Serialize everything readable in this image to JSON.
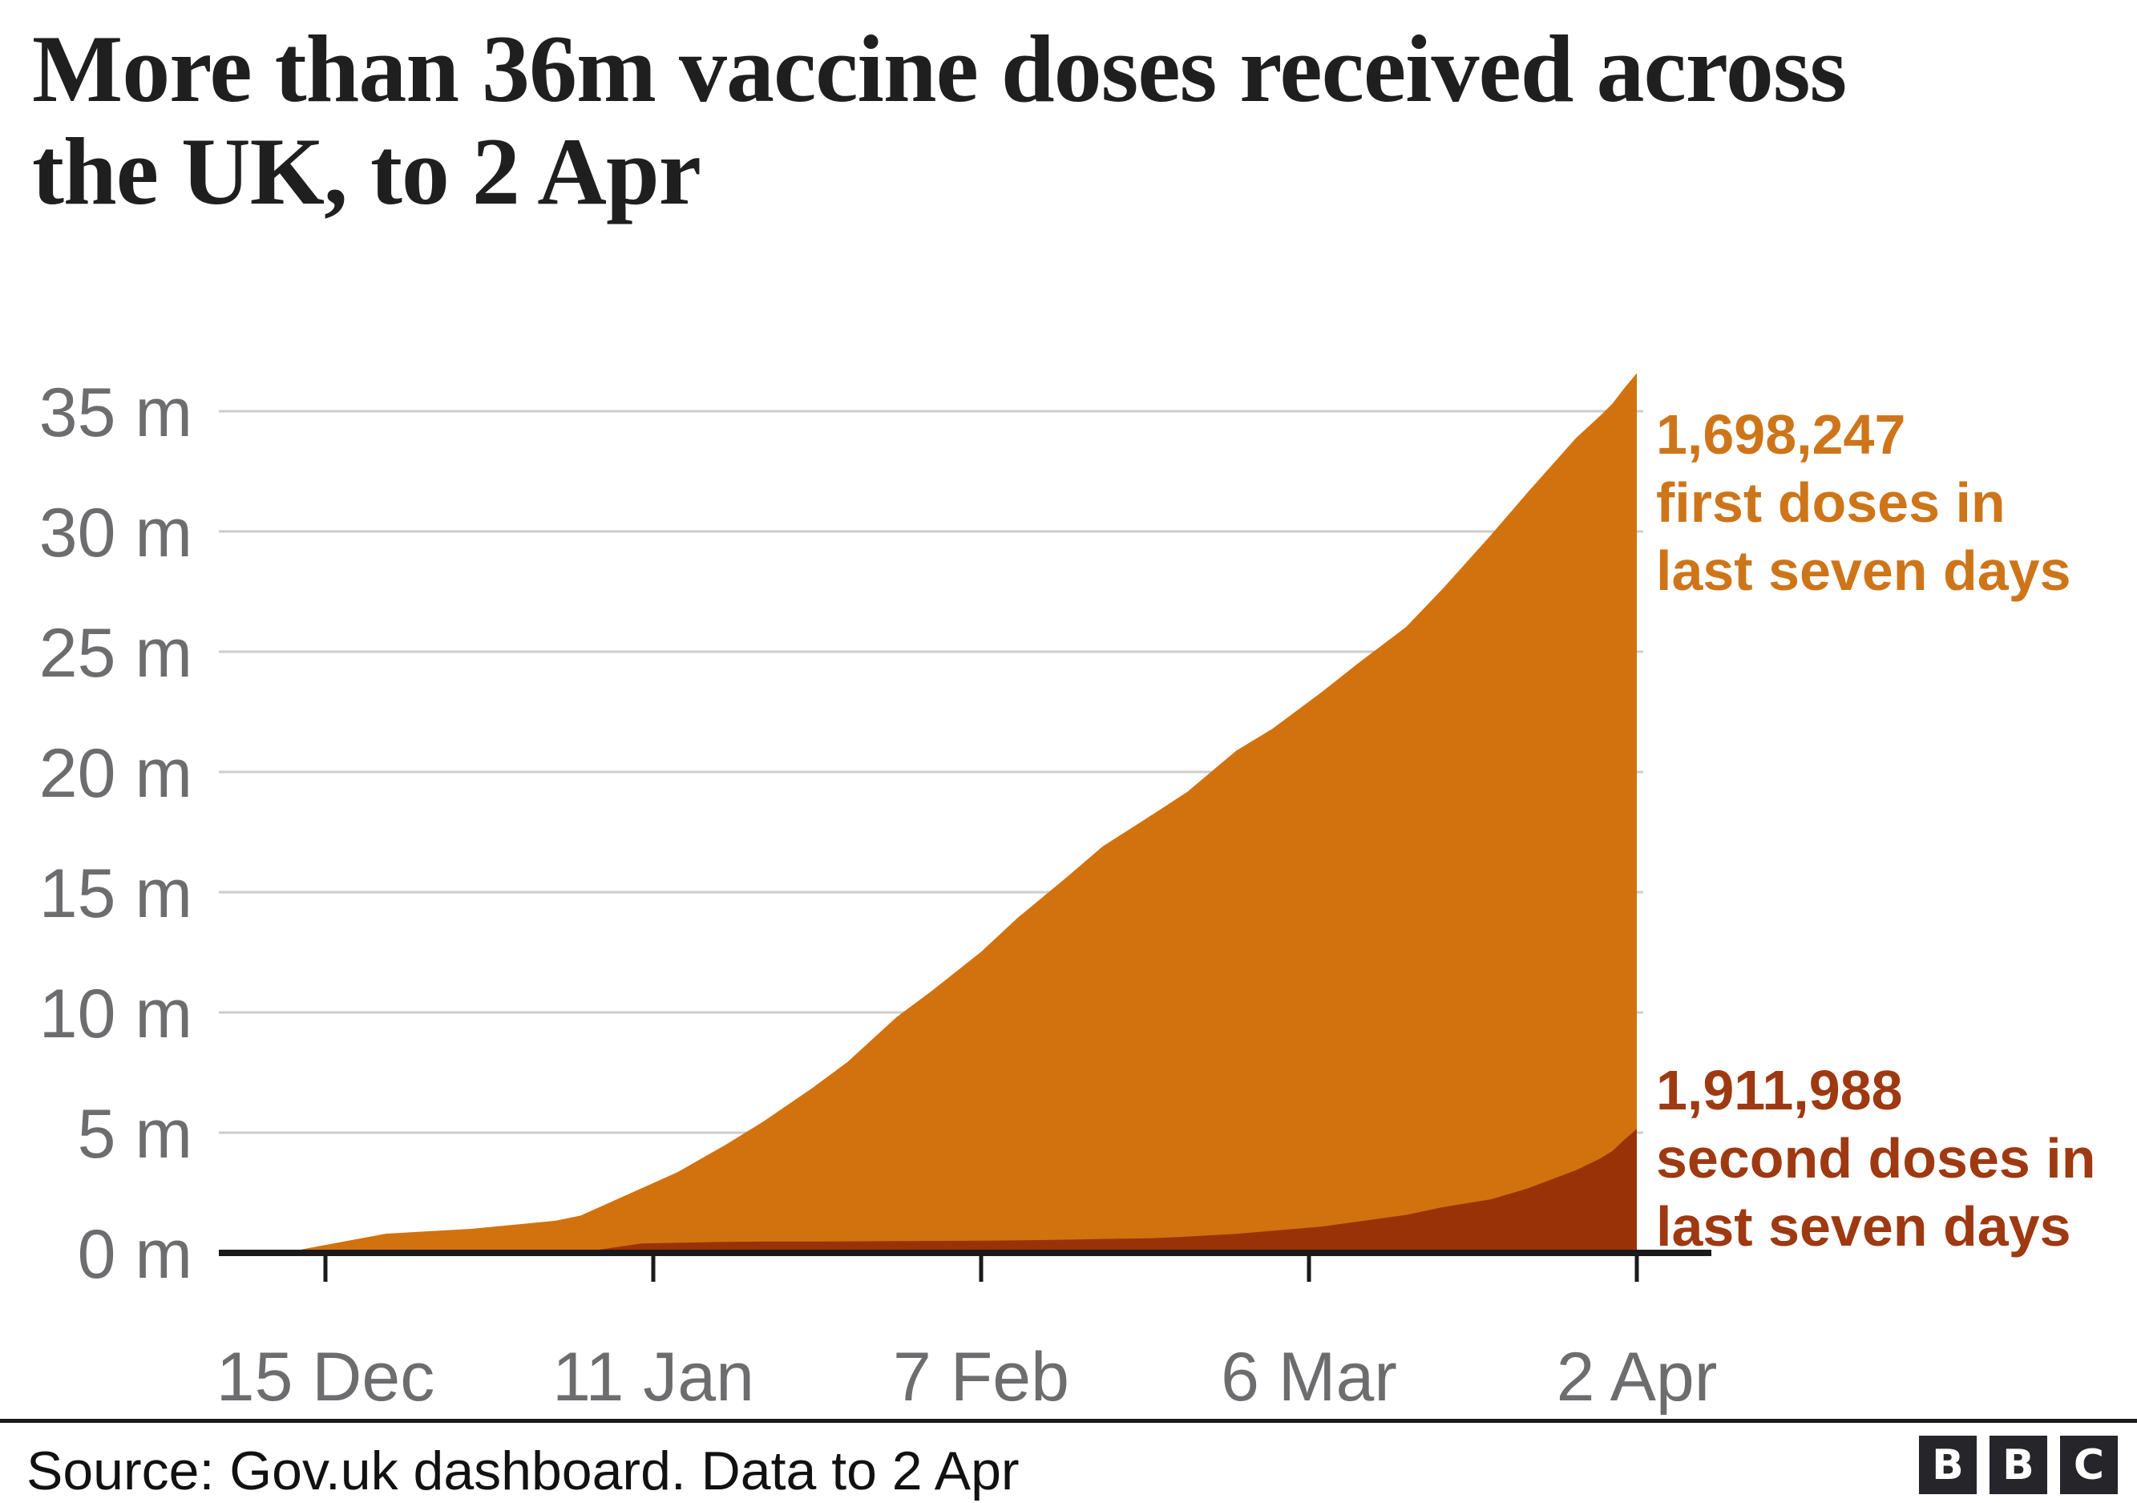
{
  "header": {
    "title_line1": "More than 36m vaccine doses received across",
    "title_line2": "the UK, to 2 Apr"
  },
  "annotations": {
    "first": {
      "lines": [
        "1,698,247",
        "first doses in",
        "last seven days"
      ],
      "color": "#CE751A"
    },
    "second": {
      "lines": [
        "1,911,988",
        "second doses in",
        "last seven days"
      ],
      "color": "#9E3911"
    }
  },
  "footer": {
    "source": "Source: Gov.uk dashboard. Data to 2 Apr",
    "logo_letters": [
      "B",
      "B",
      "C"
    ]
  },
  "chart_data": {
    "type": "area",
    "stacked": true,
    "title": "More than 36m vaccine doses received across the UK, to 2 Apr",
    "subtitle": "",
    "x_label": "",
    "y_label": "",
    "y_unit": "millions of doses",
    "y_range": [
      0,
      36.6
    ],
    "grid": "horizontal",
    "legend_position": "annotations-right",
    "colors": {
      "first_doses_area": "#D1720E",
      "second_doses_area": "#993307",
      "gridline": "#CDCDCD",
      "axis_line": "#1a1a1a",
      "axis_label": "#6D6D70"
    },
    "series_names": [
      "second doses (bottom, dark)",
      "first doses (top, orange)"
    ],
    "note": "cumulative doses, stacked: top edge = total = first + second",
    "y_ticks": [
      {
        "v": 0,
        "label": "0 m"
      },
      {
        "v": 5,
        "label": "5 m"
      },
      {
        "v": 10,
        "label": "10 m"
      },
      {
        "v": 15,
        "label": "15 m"
      },
      {
        "v": 20,
        "label": "20 m"
      },
      {
        "v": 25,
        "label": "25 m"
      },
      {
        "v": 30,
        "label": "30 m"
      },
      {
        "v": 35,
        "label": "35 m"
      }
    ],
    "x_ticks": [
      {
        "day": 2,
        "label": "15 Dec"
      },
      {
        "day": 29,
        "label": "11 Jan"
      },
      {
        "day": 56,
        "label": "7 Feb"
      },
      {
        "day": 83,
        "label": "6 Mar"
      },
      {
        "day": 110,
        "label": "2 Apr"
      }
    ],
    "points": [
      {
        "day": 0,
        "date": "13 Dec",
        "total": 0.14,
        "second": 0.0,
        "first": 0.14
      },
      {
        "day": 7,
        "date": "20 Dec",
        "total": 0.8,
        "second": 0.0,
        "first": 0.8
      },
      {
        "day": 14,
        "date": "27 Dec",
        "total": 1.0,
        "second": 0.0,
        "first": 1.0
      },
      {
        "day": 21,
        "date": "3 Jan",
        "total": 1.34,
        "second": 0.02,
        "first": 1.32
      },
      {
        "day": 23,
        "date": "5 Jan",
        "total": 1.55,
        "second": 0.02,
        "first": 1.53
      },
      {
        "day": 28,
        "date": "10 Jan",
        "total": 2.68,
        "second": 0.39,
        "first": 2.29
      },
      {
        "day": 31,
        "date": "13 Jan",
        "total": 3.36,
        "second": 0.42,
        "first": 2.94
      },
      {
        "day": 35,
        "date": "17 Jan",
        "total": 4.51,
        "second": 0.46,
        "first": 4.05
      },
      {
        "day": 38,
        "date": "20 Jan",
        "total": 5.44,
        "second": 0.47,
        "first": 4.97
      },
      {
        "day": 42,
        "date": "24 Jan",
        "total": 6.82,
        "second": 0.47,
        "first": 6.35
      },
      {
        "day": 45,
        "date": "27 Jan",
        "total": 7.94,
        "second": 0.48,
        "first": 7.46
      },
      {
        "day": 49,
        "date": "31 Jan",
        "total": 9.79,
        "second": 0.49,
        "first": 9.3
      },
      {
        "day": 52,
        "date": "3 Feb",
        "total": 10.92,
        "second": 0.5,
        "first": 10.42
      },
      {
        "day": 56,
        "date": "7 Feb",
        "total": 12.52,
        "second": 0.51,
        "first": 12.01
      },
      {
        "day": 59,
        "date": "10 Feb",
        "total": 13.93,
        "second": 0.52,
        "first": 13.41
      },
      {
        "day": 63,
        "date": "14 Feb",
        "total": 15.6,
        "second": 0.55,
        "first": 15.05
      },
      {
        "day": 66,
        "date": "17 Feb",
        "total": 16.9,
        "second": 0.58,
        "first": 16.32
      },
      {
        "day": 70,
        "date": "21 Feb",
        "total": 18.19,
        "second": 0.61,
        "first": 17.58
      },
      {
        "day": 73,
        "date": "24 Feb",
        "total": 19.18,
        "second": 0.68,
        "first": 18.5
      },
      {
        "day": 77,
        "date": "28 Feb",
        "total": 20.88,
        "second": 0.79,
        "first": 20.09
      },
      {
        "day": 80,
        "date": "3 Mar",
        "total": 21.8,
        "second": 0.92,
        "first": 20.88
      },
      {
        "day": 84,
        "date": "7 Mar",
        "total": 23.3,
        "second": 1.09,
        "first": 22.21
      },
      {
        "day": 87,
        "date": "10 Mar",
        "total": 24.5,
        "second": 1.3,
        "first": 23.2
      },
      {
        "day": 91,
        "date": "14 Mar",
        "total": 26.03,
        "second": 1.58,
        "first": 24.45
      },
      {
        "day": 94,
        "date": "17 Mar",
        "total": 27.61,
        "second": 1.9,
        "first": 25.71
      },
      {
        "day": 98,
        "date": "21 Mar",
        "total": 29.86,
        "second": 2.23,
        "first": 27.63
      },
      {
        "day": 101,
        "date": "24 Mar",
        "total": 31.62,
        "second": 2.68,
        "first": 28.94
      },
      {
        "day": 105,
        "date": "28 Mar",
        "total": 33.89,
        "second": 3.44,
        "first": 30.45
      },
      {
        "day": 107,
        "date": "30 Mar",
        "total": 34.82,
        "second": 3.93,
        "first": 30.89
      },
      {
        "day": 108,
        "date": "31 Mar",
        "total": 35.32,
        "second": 4.24,
        "first": 31.08
      },
      {
        "day": 109,
        "date": "1 Apr",
        "total": 35.98,
        "second": 4.72,
        "first": 31.26
      },
      {
        "day": 110,
        "date": "2 Apr",
        "total": 36.58,
        "second": 5.16,
        "first": 31.42
      }
    ]
  }
}
